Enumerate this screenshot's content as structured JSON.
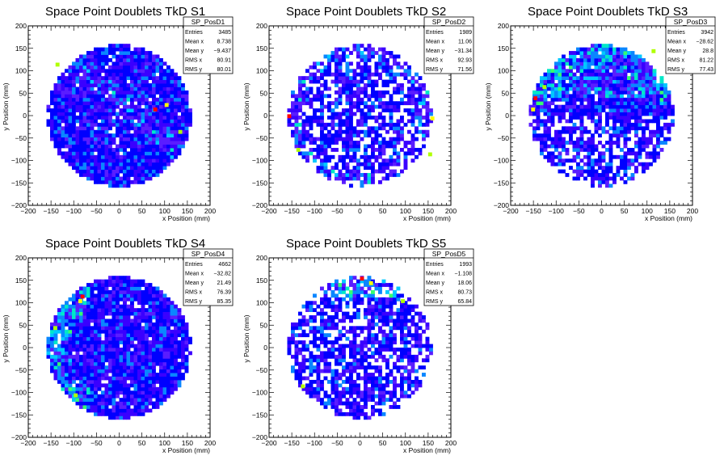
{
  "chart_data": [
    {
      "type": "heatmap",
      "title": "Space Point Doublets TkD S1",
      "xlabel": "x Position (mm)",
      "ylabel": "y Position (mm)",
      "xlim": [
        -200,
        200
      ],
      "ylim": [
        -200,
        200
      ],
      "xticks": [
        "−200",
        "−150",
        "−100",
        "−50",
        "0",
        "50",
        "100",
        "150",
        "200"
      ],
      "yticks": [
        "200",
        "150",
        "100",
        "50",
        "0",
        "−50",
        "−100",
        "−150",
        "−200"
      ],
      "fill_radius_mm": 160,
      "density": "dense",
      "hot_band": "diagonal",
      "hotspots": [
        [
          75,
          10
        ],
        [
          100,
          20
        ],
        [
          -140,
          110
        ],
        [
          130,
          -40
        ]
      ],
      "stats": {
        "name": "SP_PosD1",
        "rows": [
          {
            "label": "Entries",
            "value": "3485"
          },
          {
            "label": "Mean x",
            "value": "8.738"
          },
          {
            "label": "Mean y",
            "value": "−9.437"
          },
          {
            "label": "RMS x",
            "value": "80.91"
          },
          {
            "label": "RMS y",
            "value": "80.01"
          }
        ]
      }
    },
    {
      "type": "heatmap",
      "title": "Space Point Doublets TkD S2",
      "xlabel": "x Position (mm)",
      "ylabel": "y Position (mm)",
      "xlim": [
        -200,
        200
      ],
      "ylim": [
        -200,
        200
      ],
      "xticks": [
        "−200",
        "−150",
        "−100",
        "−50",
        "0",
        "50",
        "100",
        "150",
        "200"
      ],
      "yticks": [
        "200",
        "150",
        "100",
        "50",
        "0",
        "−50",
        "−100",
        "−150",
        "−200"
      ],
      "fill_radius_mm": 160,
      "density": "sparse",
      "hot_band": "edge",
      "hotspots": [
        [
          -160,
          -5
        ],
        [
          155,
          -10
        ],
        [
          -140,
          -80
        ],
        [
          150,
          -90
        ]
      ],
      "stats": {
        "name": "SP_PosD2",
        "rows": [
          {
            "label": "Entries",
            "value": "1989"
          },
          {
            "label": "Mean x",
            "value": "11.06"
          },
          {
            "label": "Mean y",
            "value": "−31.34"
          },
          {
            "label": "RMS x",
            "value": "92.93"
          },
          {
            "label": "RMS y",
            "value": "71.56"
          }
        ]
      }
    },
    {
      "type": "heatmap",
      "title": "Space Point Doublets TkD S3",
      "xlabel": "x Position (mm)",
      "ylabel": "y Position (mm)",
      "xlim": [
        -200,
        200
      ],
      "ylim": [
        -200,
        200
      ],
      "xticks": [
        "−200",
        "−150",
        "−100",
        "−50",
        "0",
        "50",
        "100",
        "150",
        "200"
      ],
      "yticks": [
        "200",
        "150",
        "100",
        "50",
        "0",
        "−50",
        "−100",
        "−150",
        "−200"
      ],
      "fill_radius_mm": 160,
      "density": "top",
      "hot_band": "upper",
      "hotspots": [
        [
          -150,
          35
        ],
        [
          -155,
          10
        ],
        [
          110,
          140
        ],
        [
          -130,
          60
        ]
      ],
      "stats": {
        "name": "SP_PosD3",
        "rows": [
          {
            "label": "Entries",
            "value": "3942"
          },
          {
            "label": "Mean x",
            "value": "−28.62"
          },
          {
            "label": "Mean y",
            "value": "28.8"
          },
          {
            "label": "RMS x",
            "value": "81.22"
          },
          {
            "label": "RMS y",
            "value": "77.43"
          }
        ]
      }
    },
    {
      "type": "heatmap",
      "title": "Space Point Doublets TkD S4",
      "xlabel": "x Position (mm)",
      "ylabel": "y Position (mm)",
      "xlim": [
        -200,
        200
      ],
      "ylim": [
        -200,
        200
      ],
      "xticks": [
        "−200",
        "−150",
        "−100",
        "−50",
        "0",
        "50",
        "100",
        "150",
        "200"
      ],
      "yticks": [
        "200",
        "150",
        "100",
        "50",
        "0",
        "−50",
        "−100",
        "−150",
        "−200"
      ],
      "fill_radius_mm": 160,
      "density": "dense",
      "hot_band": "leftedge",
      "hotspots": [
        [
          -85,
          110
        ],
        [
          -90,
          100
        ],
        [
          -145,
          40
        ],
        [
          -100,
          -110
        ]
      ],
      "stats": {
        "name": "SP_PosD4",
        "rows": [
          {
            "label": "Entries",
            "value": "4662"
          },
          {
            "label": "Mean x",
            "value": "−32.82"
          },
          {
            "label": "Mean y",
            "value": "21.49"
          },
          {
            "label": "RMS x",
            "value": "76.39"
          },
          {
            "label": "RMS y",
            "value": "85.35"
          }
        ]
      }
    },
    {
      "type": "heatmap",
      "title": "Space Point Doublets TkD S5",
      "xlabel": "x Position (mm)",
      "ylabel": "y Position (mm)",
      "xlim": [
        -200,
        200
      ],
      "ylim": [
        -200,
        200
      ],
      "xticks": [
        "−200",
        "−150",
        "−100",
        "−50",
        "0",
        "50",
        "100",
        "150",
        "200"
      ],
      "yticks": [
        "200",
        "150",
        "100",
        "50",
        "0",
        "−50",
        "−100",
        "−150",
        "−200"
      ],
      "fill_radius_mm": 160,
      "density": "sparse",
      "hot_band": "topedge",
      "hotspots": [
        [
          0,
          150
        ],
        [
          20,
          140
        ],
        [
          90,
          100
        ],
        [
          -130,
          -90
        ]
      ],
      "stats": {
        "name": "SP_PosD5",
        "rows": [
          {
            "label": "Entries",
            "value": "1993"
          },
          {
            "label": "Mean x",
            "value": "−1.108"
          },
          {
            "label": "Mean y",
            "value": "18.06"
          },
          {
            "label": "RMS x",
            "value": "80.73"
          },
          {
            "label": "RMS y",
            "value": "65.84"
          }
        ]
      }
    }
  ],
  "colors": {
    "palette": [
      "#0000ff",
      "#3a00ff",
      "#5a1dff",
      "#0a86ff",
      "#00c8ff",
      "#00e8c8",
      "#35ff70",
      "#b0ff00",
      "#ffff00",
      "#ff9000",
      "#ff0000"
    ]
  }
}
